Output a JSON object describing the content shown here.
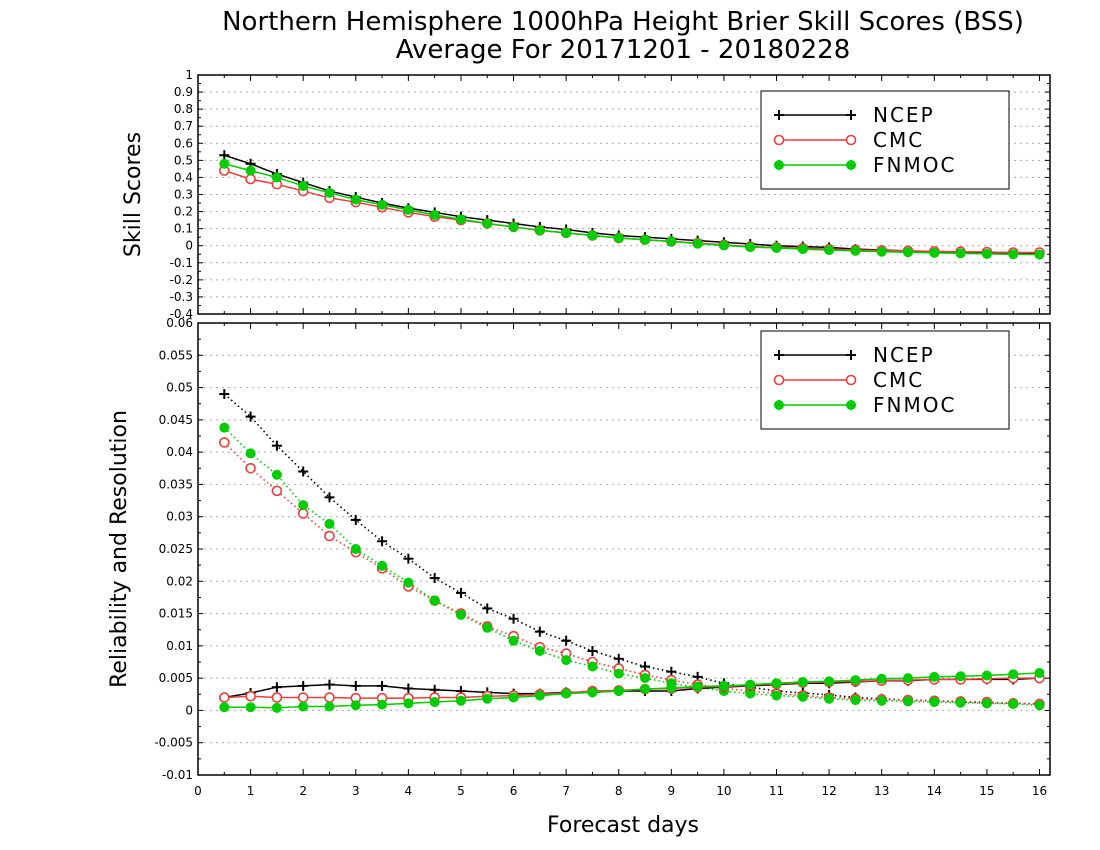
{
  "title": {
    "line1": "Northern Hemisphere 1000hPa Height Brier Skill Scores (BSS)",
    "line2": "Average For 20171201 - 20180228"
  },
  "colors": {
    "NCEP": "#000000",
    "CMC": "#e8403f",
    "FNMOC": "#00cc00"
  },
  "chart_data": [
    {
      "type": "line",
      "ylabel": "Skill Scores",
      "xlabel": "",
      "xlim": [
        0,
        16.2
      ],
      "ylim": [
        -0.4,
        1
      ],
      "xticks": [
        "0",
        "1",
        "2",
        "3",
        "4",
        "5",
        "6",
        "7",
        "8",
        "9",
        "10",
        "11",
        "12",
        "13",
        "14",
        "15",
        "16"
      ],
      "yticks": [
        "1",
        "0.9",
        "0.8",
        "0.7",
        "0.6",
        "0.5",
        "0.4",
        "0.3",
        "0.2",
        "0.1",
        "0",
        "-0.1",
        "-0.2",
        "-0.3",
        "-0.4"
      ],
      "grid": "horizontal-dotted",
      "legend_position": "top-right",
      "x": [
        0.5,
        1,
        1.5,
        2,
        2.5,
        3,
        3.5,
        4,
        4.5,
        5,
        5.5,
        6,
        6.5,
        7,
        7.5,
        8,
        8.5,
        9,
        9.5,
        10,
        10.5,
        11,
        11.5,
        12,
        12.5,
        13,
        13.5,
        14,
        14.5,
        15,
        15.5,
        16
      ],
      "series": [
        {
          "name": "NCEP",
          "marker": "plus",
          "line": "solid",
          "values": [
            0.53,
            0.48,
            0.42,
            0.37,
            0.32,
            0.285,
            0.25,
            0.22,
            0.195,
            0.17,
            0.15,
            0.13,
            0.11,
            0.095,
            0.075,
            0.06,
            0.05,
            0.04,
            0.03,
            0.02,
            0.01,
            0.0,
            -0.005,
            -0.01,
            -0.02,
            -0.025,
            -0.03,
            -0.035,
            -0.04,
            -0.04,
            -0.045,
            -0.045
          ]
        },
        {
          "name": "CMC",
          "marker": "open-circle",
          "line": "solid",
          "values": [
            0.44,
            0.39,
            0.36,
            0.32,
            0.28,
            0.255,
            0.225,
            0.195,
            0.17,
            0.15,
            0.13,
            0.11,
            0.09,
            0.075,
            0.06,
            0.045,
            0.035,
            0.025,
            0.015,
            0.005,
            -0.005,
            -0.01,
            -0.015,
            -0.02,
            -0.025,
            -0.028,
            -0.03,
            -0.033,
            -0.035,
            -0.037,
            -0.04,
            -0.04
          ]
        },
        {
          "name": "FNMOC",
          "marker": "filled-circle",
          "line": "solid",
          "values": [
            0.48,
            0.44,
            0.4,
            0.35,
            0.31,
            0.27,
            0.24,
            0.21,
            0.18,
            0.155,
            0.13,
            0.11,
            0.09,
            0.075,
            0.06,
            0.045,
            0.035,
            0.025,
            0.012,
            0.002,
            -0.008,
            -0.013,
            -0.02,
            -0.025,
            -0.03,
            -0.035,
            -0.038,
            -0.042,
            -0.045,
            -0.048,
            -0.05,
            -0.052
          ]
        }
      ]
    },
    {
      "type": "line",
      "ylabel": "Reliability and Resolution",
      "xlabel": "Forecast days",
      "xlim": [
        0,
        16.2
      ],
      "ylim": [
        -0.01,
        0.06
      ],
      "xticks": [
        "0",
        "1",
        "2",
        "3",
        "4",
        "5",
        "6",
        "7",
        "8",
        "9",
        "10",
        "11",
        "12",
        "13",
        "14",
        "15",
        "16"
      ],
      "yticks": [
        "0.06",
        "0.055",
        "0.05",
        "0.045",
        "0.04",
        "0.035",
        "0.03",
        "0.025",
        "0.02",
        "0.015",
        "0.01",
        "0.005",
        "0",
        "-0.005",
        "-0.01"
      ],
      "grid": "horizontal-dotted",
      "legend_position": "top-right",
      "x": [
        0.5,
        1,
        1.5,
        2,
        2.5,
        3,
        3.5,
        4,
        4.5,
        5,
        5.5,
        6,
        6.5,
        7,
        7.5,
        8,
        8.5,
        9,
        9.5,
        10,
        10.5,
        11,
        11.5,
        12,
        12.5,
        13,
        13.5,
        14,
        14.5,
        15,
        15.5,
        16
      ],
      "series": [
        {
          "name": "NCEP",
          "marker": "plus",
          "line": "dotted",
          "values": [
            0.049,
            0.0455,
            0.041,
            0.037,
            0.033,
            0.0295,
            0.0262,
            0.0235,
            0.0205,
            0.0182,
            0.0158,
            0.0142,
            0.0122,
            0.0108,
            0.0092,
            0.008,
            0.0068,
            0.006,
            0.0052,
            0.0042,
            0.0036,
            0.003,
            0.0027,
            0.0024,
            0.002,
            0.0018,
            0.0016,
            0.0015,
            0.0013,
            0.0012,
            0.0011,
            0.001
          ]
        },
        {
          "name": "CMC",
          "marker": "open-circle",
          "line": "dotted",
          "values": [
            0.0415,
            0.0375,
            0.034,
            0.0305,
            0.027,
            0.0245,
            0.022,
            0.0192,
            0.017,
            0.015,
            0.013,
            0.0115,
            0.0098,
            0.0088,
            0.0075,
            0.0065,
            0.0055,
            0.0047,
            0.004,
            0.0034,
            0.003,
            0.0026,
            0.0023,
            0.002,
            0.0018,
            0.0017,
            0.0016,
            0.0015,
            0.0014,
            0.0013,
            0.0011,
            0.001
          ]
        },
        {
          "name": "FNMOC",
          "marker": "filled-circle",
          "line": "dotted",
          "values": [
            0.0438,
            0.0398,
            0.0365,
            0.0318,
            0.0289,
            0.025,
            0.0224,
            0.0198,
            0.017,
            0.0148,
            0.0128,
            0.0108,
            0.0092,
            0.0078,
            0.0068,
            0.0057,
            0.005,
            0.0042,
            0.0036,
            0.003,
            0.0026,
            0.0023,
            0.0021,
            0.0018,
            0.0016,
            0.0015,
            0.0014,
            0.0013,
            0.0012,
            0.0011,
            0.001,
            0.0008
          ]
        },
        {
          "name": "NCEP",
          "marker": "plus",
          "line": "solid",
          "values": [
            0.002,
            0.0027,
            0.0036,
            0.0038,
            0.004,
            0.0038,
            0.0038,
            0.0034,
            0.0032,
            0.003,
            0.0028,
            0.0026,
            0.0026,
            0.0028,
            0.0028,
            0.003,
            0.003,
            0.003,
            0.0034,
            0.0036,
            0.0038,
            0.004,
            0.0042,
            0.0042,
            0.0044,
            0.0046,
            0.0046,
            0.0048,
            0.0048,
            0.0048,
            0.0048,
            0.005
          ]
        },
        {
          "name": "CMC",
          "marker": "open-circle",
          "line": "solid",
          "values": [
            0.002,
            0.0022,
            0.002,
            0.002,
            0.002,
            0.0019,
            0.0019,
            0.0019,
            0.002,
            0.002,
            0.0022,
            0.0023,
            0.0025,
            0.0027,
            0.003,
            0.0031,
            0.0033,
            0.0034,
            0.0036,
            0.0037,
            0.0039,
            0.0041,
            0.0043,
            0.0044,
            0.0045,
            0.0046,
            0.0047,
            0.0048,
            0.0048,
            0.0049,
            0.005,
            0.005
          ]
        },
        {
          "name": "FNMOC",
          "marker": "filled-circle",
          "line": "solid",
          "values": [
            0.0005,
            0.0005,
            0.0004,
            0.0006,
            0.0006,
            0.0008,
            0.0009,
            0.0011,
            0.0013,
            0.0015,
            0.0018,
            0.002,
            0.0023,
            0.0026,
            0.0028,
            0.003,
            0.0033,
            0.0035,
            0.0037,
            0.0038,
            0.004,
            0.0042,
            0.0044,
            0.0045,
            0.0047,
            0.0049,
            0.005,
            0.0052,
            0.0053,
            0.0054,
            0.0056,
            0.0058
          ]
        }
      ]
    }
  ]
}
